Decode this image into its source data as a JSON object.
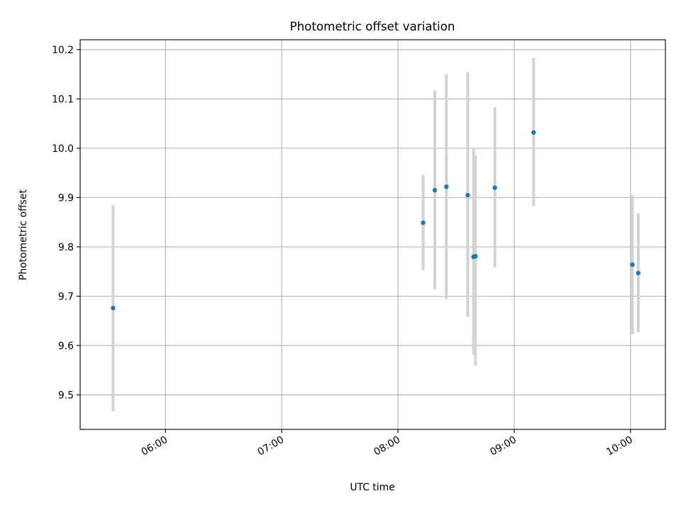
{
  "chart_data": {
    "type": "scatter",
    "title": "Photometric offset variation",
    "xlabel": "UTC time",
    "ylabel": "Photometric offset",
    "x_tick_labels": [
      "06:00",
      "07:00",
      "08:00",
      "09:00",
      "10:00"
    ],
    "y_tick_labels": [
      "9.5",
      "9.6",
      "9.7",
      "9.8",
      "9.9",
      "10.0",
      "10.1",
      "10.2"
    ],
    "xlim": [
      "05:16",
      "10:18"
    ],
    "ylim": [
      9.43,
      10.22
    ],
    "grid": true,
    "colors": {
      "points": "#1f77b4",
      "errorbars": "#d3d3d3"
    },
    "series": [
      {
        "points": [
          {
            "x": "05:33",
            "y": 9.676,
            "yerr_low": 9.467,
            "yerr_high": 9.885
          },
          {
            "x": "08:13",
            "y": 9.849,
            "yerr_low": 9.753,
            "yerr_high": 9.946
          },
          {
            "x": "08:19",
            "y": 9.915,
            "yerr_low": 9.714,
            "yerr_high": 10.117
          },
          {
            "x": "08:25",
            "y": 9.922,
            "yerr_low": 9.694,
            "yerr_high": 10.15
          },
          {
            "x": "08:36",
            "y": 9.905,
            "yerr_low": 9.658,
            "yerr_high": 10.154
          },
          {
            "x": "08:39",
            "y": 9.78,
            "yerr_low": 9.581,
            "yerr_high": 10.001
          },
          {
            "x": "08:40",
            "y": 9.781,
            "yerr_low": 9.559,
            "yerr_high": 9.986
          },
          {
            "x": "08:50",
            "y": 9.92,
            "yerr_low": 9.759,
            "yerr_high": 10.084
          },
          {
            "x": "09:10",
            "y": 10.032,
            "yerr_low": 9.883,
            "yerr_high": 10.183
          },
          {
            "x": "10:01",
            "y": 9.764,
            "yerr_low": 9.623,
            "yerr_high": 9.905
          },
          {
            "x": "10:04",
            "y": 9.747,
            "yerr_low": 9.627,
            "yerr_high": 9.868
          }
        ]
      }
    ]
  }
}
